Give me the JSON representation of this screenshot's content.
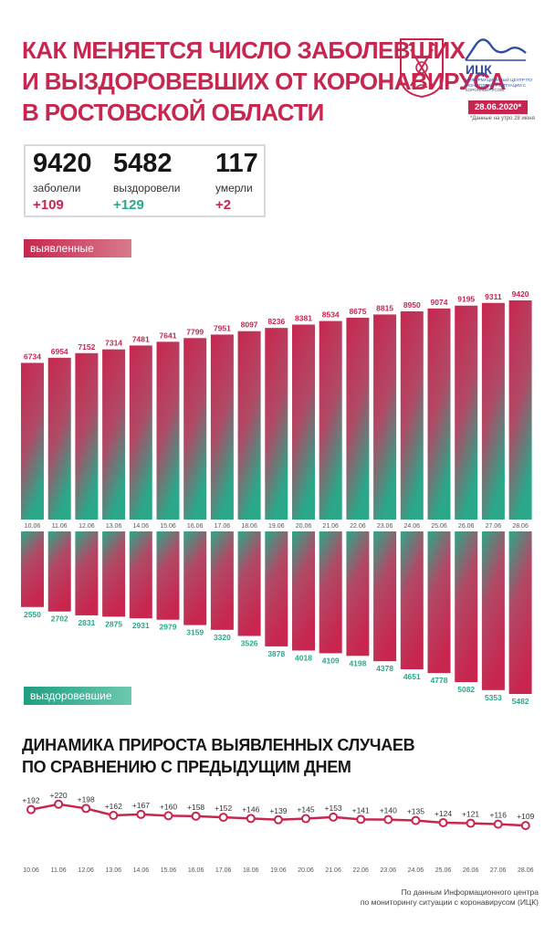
{
  "title": {
    "line1": "КАК МЕНЯЕТСЯ ЧИСЛО ЗАБОЛЕВШИХ",
    "line2": "И ВЫЗДОРОВЕВШИХ ОТ КОРОНАВИРУСА",
    "line3": "В РОСТОВСКОЙ ОБЛАСТИ"
  },
  "logo": {
    "name": "ИЦК",
    "subtitle": "ИНФОРМАЦИОННЫЙ ЦЕНТР ПО МОНИТОРИНГУ СИТУАЦИИ С КОРОНАВИРУСОМ"
  },
  "date_badge": "28.06.2020*",
  "date_note": "*Данные на утро 28 июня",
  "stats": [
    {
      "value": "9420",
      "label": "заболели",
      "delta": "+109"
    },
    {
      "value": "5482",
      "label": "выздоровели",
      "delta": "+129"
    },
    {
      "value": "117",
      "label": "умерли",
      "delta": "+2"
    }
  ],
  "bands": {
    "cases": "выявленные случаи",
    "recovered": "выздоровевшие"
  },
  "subtitle": {
    "line1": "ДИНАМИКА ПРИРОСТА ВЫЯВЛЕННЫХ СЛУЧАЕВ",
    "line2": "ПО СРАВНЕНИЮ С ПРЕДЫДУЩИМ ДНЕМ"
  },
  "source": {
    "line1": "По данным Информационного центра",
    "line2": "по мониторингу ситуации с коронавирусом (ИЦК)"
  },
  "colors": {
    "accent": "#c8264f",
    "green": "#2aa889"
  },
  "chart_data": [
    {
      "type": "bar",
      "categories": [
        "10.06",
        "11.06",
        "12.06",
        "13.06",
        "14.06",
        "15.06",
        "16.06",
        "17.06",
        "18.06",
        "19.06",
        "20.06",
        "21.06",
        "22.06",
        "23.06",
        "24.06",
        "25.06",
        "26.06",
        "27.06",
        "28.06"
      ],
      "series": [
        {
          "name": "выявленные случаи",
          "values": [
            6734,
            6954,
            7152,
            7314,
            7481,
            7641,
            7799,
            7951,
            8097,
            8236,
            8381,
            8534,
            8675,
            8815,
            8950,
            9074,
            9195,
            9311,
            9420
          ]
        },
        {
          "name": "выздоровевшие",
          "values": [
            2550,
            2702,
            2831,
            2875,
            2931,
            2979,
            3159,
            3320,
            3526,
            3878,
            4018,
            4109,
            4198,
            4378,
            4651,
            4778,
            5082,
            5353,
            5482
          ]
        }
      ]
    },
    {
      "type": "line",
      "title": "ДИНАМИКА ПРИРОСТА ВЫЯВЛЕННЫХ СЛУЧАЕВ ПО СРАВНЕНИЮ С ПРЕДЫДУЩИМ ДНЕМ",
      "x": [
        "10.06",
        "11.06",
        "12.06",
        "13.06",
        "14.06",
        "15.06",
        "16.06",
        "17.06",
        "18.06",
        "19.06",
        "20.06",
        "21.06",
        "22.06",
        "23.06",
        "24.06",
        "25.06",
        "26.06",
        "27.06",
        "28.06"
      ],
      "y": [
        192,
        220,
        198,
        162,
        167,
        160,
        158,
        152,
        146,
        139,
        145,
        153,
        141,
        140,
        135,
        124,
        121,
        116,
        109
      ],
      "labels": [
        "+192",
        "+220",
        "+198",
        "+162",
        "+167",
        "+160",
        "+158",
        "+152",
        "+146",
        "+139",
        "+145",
        "+153",
        "+141",
        "+140",
        "+135",
        "+124",
        "+121",
        "+116",
        "+109"
      ]
    }
  ]
}
